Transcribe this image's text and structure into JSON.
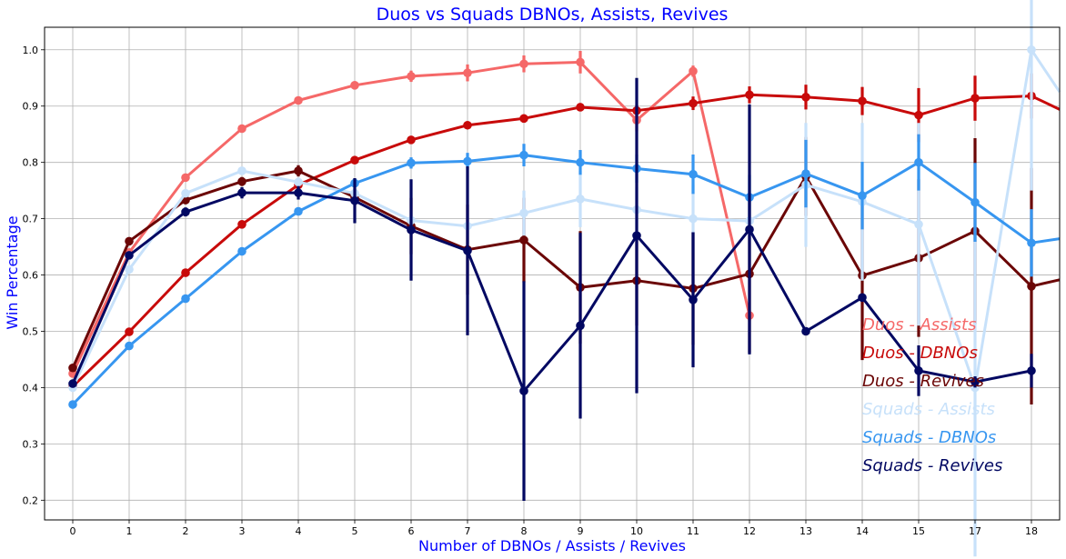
{
  "chart_data": {
    "type": "line",
    "title": "Duos vs Squads DBNOs, Assists, Revives",
    "xlabel": "Number of DBNOs / Assists / Revives",
    "ylabel": "Win Percentage",
    "categories": [
      "0",
      "1",
      "2",
      "3",
      "4",
      "5",
      "6",
      "7",
      "8",
      "9",
      "10",
      "11",
      "12",
      "13",
      "14",
      "15",
      "17",
      "18"
    ],
    "y_ticks": [
      "0.2",
      "0.3",
      "0.4",
      "0.5",
      "0.6",
      "0.7",
      "0.8",
      "0.9",
      "1.0"
    ],
    "ylim": [
      0.165,
      1.04
    ],
    "grid": true,
    "legend_position": "lower-right",
    "title_color": "#0000ff",
    "series": [
      {
        "name": "Duos - Assists",
        "color": "#f56868",
        "values": [
          0.425,
          0.64,
          0.773,
          0.86,
          0.91,
          0.937,
          0.953,
          0.959,
          0.975,
          0.978,
          0.875,
          0.962,
          0.528,
          null,
          null,
          null,
          null,
          null
        ],
        "err": [
          0.005,
          0.005,
          0.006,
          0.005,
          0.005,
          0.005,
          0.01,
          0.015,
          0.015,
          0.02,
          0.02,
          0.01,
          0.01,
          null,
          null,
          null,
          null,
          null
        ]
      },
      {
        "name": "Duos - DBNOs",
        "color": "#c80a0a",
        "values": [
          0.402,
          0.499,
          0.604,
          0.69,
          0.76,
          0.804,
          0.84,
          0.866,
          0.878,
          0.898,
          0.892,
          0.905,
          0.92,
          0.916,
          0.909,
          0.884,
          0.914,
          0.918
        ],
        "err": [
          0.005,
          0.005,
          0.005,
          0.005,
          0.005,
          0.005,
          0.005,
          0.005,
          0.005,
          0.007,
          0.01,
          0.012,
          0.015,
          0.022,
          0.025,
          0.048,
          0.04,
          0.04
        ],
        "trailing": 0.87
      },
      {
        "name": "Duos - Revives",
        "color": "#6b0606",
        "values": [
          0.435,
          0.66,
          0.733,
          0.766,
          0.785,
          0.738,
          0.687,
          0.645,
          0.662,
          0.578,
          0.59,
          0.576,
          0.602,
          0.775,
          0.599,
          0.63,
          0.678,
          0.58
        ],
        "err": [
          0.005,
          0.005,
          0.005,
          0.008,
          0.01,
          0.015,
          0.05,
          0.08,
          0.075,
          0.1,
          0.08,
          0.1,
          0.14,
          0.07,
          0.15,
          0.14,
          0.165,
          0.21
        ],
        "trailing": 0.603
      },
      {
        "name": "Squads - Assists",
        "color": "#c7e1fa",
        "values": [
          0.4,
          0.61,
          0.745,
          0.785,
          0.765,
          0.745,
          0.697,
          0.687,
          0.71,
          0.735,
          0.716,
          0.7,
          0.696,
          0.76,
          0.73,
          0.69,
          0.4,
          1.0
        ],
        "err": [
          0.005,
          0.005,
          0.005,
          0.005,
          0.008,
          0.01,
          0.015,
          0.02,
          0.04,
          0.05,
          0.04,
          0.06,
          0.08,
          0.11,
          0.14,
          0.18,
          0.3,
          0.25
        ],
        "trailing": 0.85
      },
      {
        "name": "Squads - DBNOs",
        "color": "#3796f0",
        "values": [
          0.37,
          0.474,
          0.558,
          0.642,
          0.713,
          0.763,
          0.799,
          0.802,
          0.813,
          0.8,
          0.789,
          0.779,
          0.738,
          0.78,
          0.741,
          0.8,
          0.729,
          0.657
        ],
        "err": [
          0.005,
          0.005,
          0.005,
          0.005,
          0.005,
          0.006,
          0.01,
          0.015,
          0.02,
          0.022,
          0.025,
          0.035,
          0.04,
          0.06,
          0.06,
          0.05,
          0.07,
          0.06
        ],
        "trailing": 0.672
      },
      {
        "name": "Squads - Revives",
        "color": "#020862",
        "values": [
          0.407,
          0.635,
          0.712,
          0.746,
          0.746,
          0.732,
          0.68,
          0.643,
          0.394,
          0.51,
          0.67,
          0.556,
          0.681,
          0.5,
          0.56,
          0.43,
          0.41,
          0.43
        ],
        "err": [
          0.005,
          0.005,
          0.008,
          0.01,
          0.012,
          0.04,
          0.09,
          0.15,
          0.195,
          0.165,
          0.28,
          0.12,
          0.222,
          0.005,
          0.005,
          0.045,
          0.01,
          0.03
        ]
      }
    ]
  }
}
